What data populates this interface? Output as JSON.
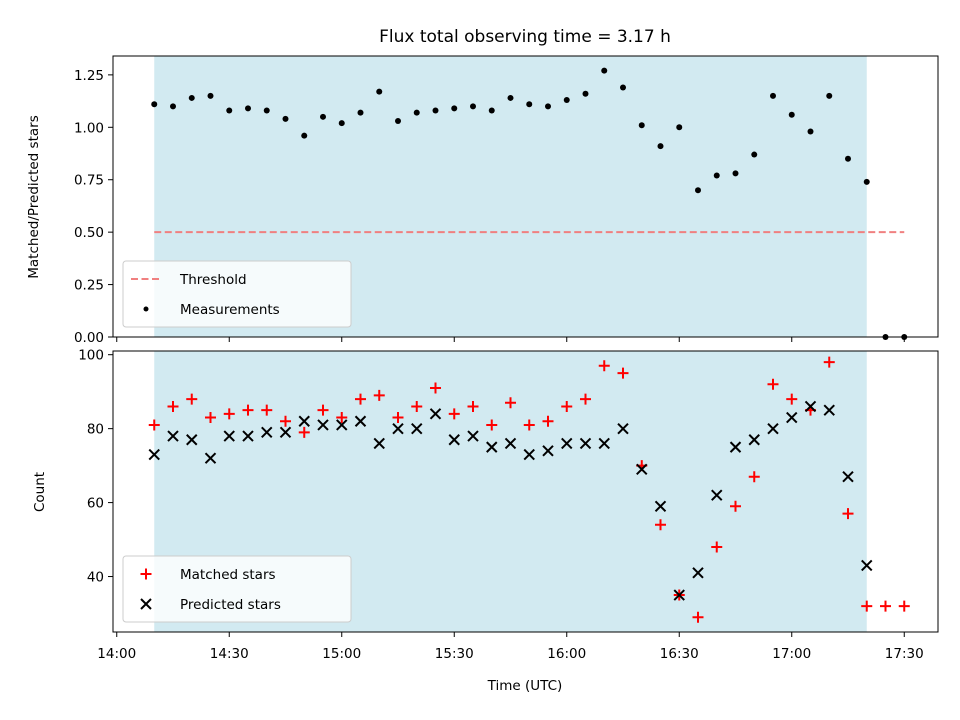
{
  "chart_data": [
    {
      "type": "scatter",
      "title": "Flux total observing time = 3.17 h",
      "ylabel": "Matched/Predicted stars",
      "xlabel": "",
      "ylim": [
        0,
        1.34
      ],
      "yticks": [
        "0.00",
        "0.25",
        "0.50",
        "0.75",
        "1.00",
        "1.25"
      ],
      "xlim": [
        "13:59",
        "17:39"
      ],
      "shaded_range": [
        "14:10",
        "17:20"
      ],
      "shade_color": "#add8e6",
      "threshold": {
        "name": "Threshold",
        "value": 0.5,
        "x": [
          "14:10",
          "17:30"
        ],
        "color": "#f08080",
        "style": "dashed"
      },
      "series": [
        {
          "name": "Measurements",
          "color": "#000000",
          "marker": "dot",
          "points": [
            [
              "14:10",
              1.11
            ],
            [
              "14:15",
              1.1
            ],
            [
              "14:20",
              1.14
            ],
            [
              "14:25",
              1.15
            ],
            [
              "14:30",
              1.08
            ],
            [
              "14:35",
              1.09
            ],
            [
              "14:40",
              1.08
            ],
            [
              "14:45",
              1.04
            ],
            [
              "14:50",
              0.96
            ],
            [
              "14:55",
              1.05
            ],
            [
              "15:00",
              1.02
            ],
            [
              "15:05",
              1.07
            ],
            [
              "15:10",
              1.17
            ],
            [
              "15:15",
              1.03
            ],
            [
              "15:20",
              1.07
            ],
            [
              "15:25",
              1.08
            ],
            [
              "15:30",
              1.09
            ],
            [
              "15:35",
              1.1
            ],
            [
              "15:40",
              1.08
            ],
            [
              "15:45",
              1.14
            ],
            [
              "15:50",
              1.11
            ],
            [
              "15:55",
              1.1
            ],
            [
              "16:00",
              1.13
            ],
            [
              "16:05",
              1.16
            ],
            [
              "16:10",
              1.27
            ],
            [
              "16:15",
              1.19
            ],
            [
              "16:20",
              1.01
            ],
            [
              "16:25",
              0.91
            ],
            [
              "16:30",
              1.0
            ],
            [
              "16:35",
              0.7
            ],
            [
              "16:40",
              0.77
            ],
            [
              "16:45",
              0.78
            ],
            [
              "16:50",
              0.87
            ],
            [
              "16:55",
              1.15
            ],
            [
              "17:00",
              1.06
            ],
            [
              "17:05",
              0.98
            ],
            [
              "17:10",
              1.15
            ],
            [
              "17:15",
              0.85
            ],
            [
              "17:20",
              0.74
            ],
            [
              "17:25",
              0.0
            ],
            [
              "17:30",
              0.0
            ]
          ]
        }
      ],
      "legend": {
        "placement": "lower-left",
        "entries": [
          "Threshold",
          "Measurements"
        ]
      }
    },
    {
      "type": "scatter",
      "title": "",
      "ylabel": "Count",
      "xlabel": "Time (UTC)",
      "ylim": [
        25,
        101
      ],
      "yticks": [
        "40",
        "60",
        "80",
        "100"
      ],
      "xlim": [
        "13:59",
        "17:39"
      ],
      "xticks": [
        "14:00",
        "14:30",
        "15:00",
        "15:30",
        "16:00",
        "16:30",
        "17:00",
        "17:30"
      ],
      "shaded_range": [
        "14:10",
        "17:20"
      ],
      "shade_color": "#add8e6",
      "series": [
        {
          "name": "Matched stars",
          "color": "#ff0000",
          "marker": "plus",
          "points": [
            [
              "14:10",
              81
            ],
            [
              "14:15",
              86
            ],
            [
              "14:20",
              88
            ],
            [
              "14:25",
              83
            ],
            [
              "14:30",
              84
            ],
            [
              "14:35",
              85
            ],
            [
              "14:40",
              85
            ],
            [
              "14:45",
              82
            ],
            [
              "14:50",
              79
            ],
            [
              "14:55",
              85
            ],
            [
              "15:00",
              83
            ],
            [
              "15:05",
              88
            ],
            [
              "15:10",
              89
            ],
            [
              "15:15",
              83
            ],
            [
              "15:20",
              86
            ],
            [
              "15:25",
              91
            ],
            [
              "15:30",
              84
            ],
            [
              "15:35",
              86
            ],
            [
              "15:40",
              81
            ],
            [
              "15:45",
              87
            ],
            [
              "15:50",
              81
            ],
            [
              "15:55",
              82
            ],
            [
              "16:00",
              86
            ],
            [
              "16:05",
              88
            ],
            [
              "16:10",
              97
            ],
            [
              "16:15",
              95
            ],
            [
              "16:20",
              70
            ],
            [
              "16:25",
              54
            ],
            [
              "16:30",
              35
            ],
            [
              "16:35",
              29
            ],
            [
              "16:40",
              48
            ],
            [
              "16:45",
              59
            ],
            [
              "16:50",
              67
            ],
            [
              "16:55",
              92
            ],
            [
              "17:00",
              88
            ],
            [
              "17:05",
              85
            ],
            [
              "17:10",
              98
            ],
            [
              "17:15",
              57
            ],
            [
              "17:20",
              32
            ],
            [
              "17:25",
              32
            ],
            [
              "17:30",
              32
            ]
          ]
        },
        {
          "name": "Predicted stars",
          "color": "#000000",
          "marker": "cross",
          "points": [
            [
              "14:10",
              73
            ],
            [
              "14:15",
              78
            ],
            [
              "14:20",
              77
            ],
            [
              "14:25",
              72
            ],
            [
              "14:30",
              78
            ],
            [
              "14:35",
              78
            ],
            [
              "14:40",
              79
            ],
            [
              "14:45",
              79
            ],
            [
              "14:50",
              82
            ],
            [
              "14:55",
              81
            ],
            [
              "15:00",
              81
            ],
            [
              "15:05",
              82
            ],
            [
              "15:10",
              76
            ],
            [
              "15:15",
              80
            ],
            [
              "15:20",
              80
            ],
            [
              "15:25",
              84
            ],
            [
              "15:30",
              77
            ],
            [
              "15:35",
              78
            ],
            [
              "15:40",
              75
            ],
            [
              "15:45",
              76
            ],
            [
              "15:50",
              73
            ],
            [
              "15:55",
              74
            ],
            [
              "16:00",
              76
            ],
            [
              "16:05",
              76
            ],
            [
              "16:10",
              76
            ],
            [
              "16:15",
              80
            ],
            [
              "16:20",
              69
            ],
            [
              "16:25",
              59
            ],
            [
              "16:30",
              35
            ],
            [
              "16:35",
              41
            ],
            [
              "16:40",
              62
            ],
            [
              "16:45",
              75
            ],
            [
              "16:50",
              77
            ],
            [
              "16:55",
              80
            ],
            [
              "17:00",
              83
            ],
            [
              "17:05",
              86
            ],
            [
              "17:10",
              85
            ],
            [
              "17:15",
              67
            ],
            [
              "17:20",
              43
            ]
          ]
        }
      ],
      "legend": {
        "placement": "lower-left",
        "entries": [
          "Matched stars",
          "Predicted stars"
        ]
      }
    }
  ]
}
